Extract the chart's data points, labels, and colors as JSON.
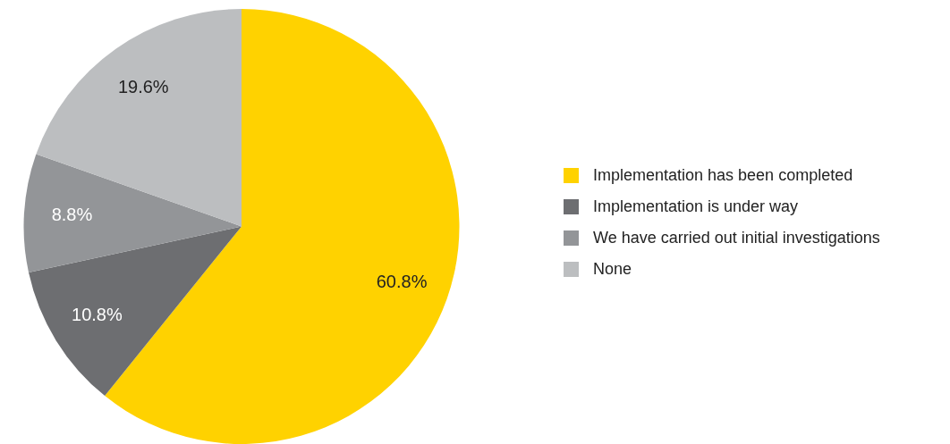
{
  "chart_data": {
    "type": "pie",
    "categories": [
      "Implementation has been completed",
      "Implementation is under way",
      "We have carried out initial investigations",
      "None"
    ],
    "values": [
      60.8,
      10.8,
      8.8,
      19.6
    ],
    "colors": [
      "#ffd200",
      "#6d6e71",
      "#939598",
      "#bcbec0"
    ],
    "value_labels": [
      "60.8%",
      "10.8%",
      "8.8%",
      "19.6%"
    ],
    "legend": "right"
  }
}
